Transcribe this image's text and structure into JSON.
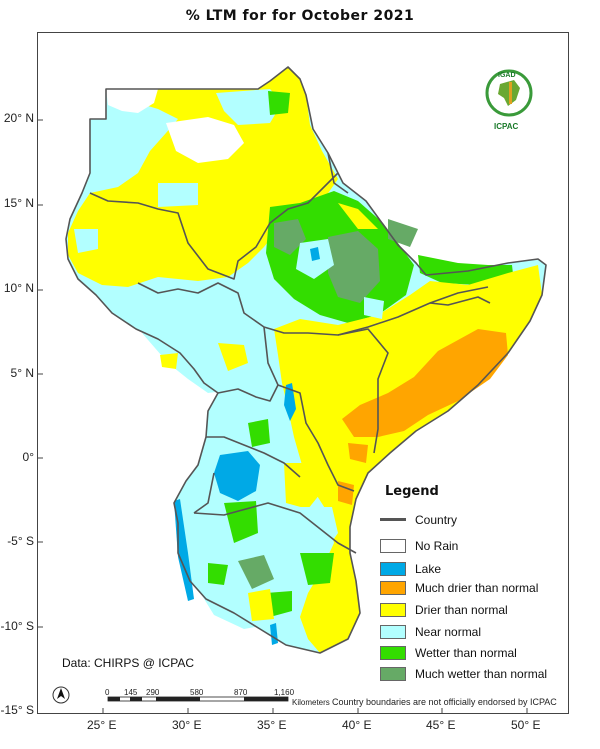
{
  "title": "% LTM for  for October 2021",
  "latitude_labels": [
    "20° N",
    "15° N",
    "10° N",
    "5° N",
    "0°",
    "-5° S",
    "-10° S",
    "-15° S"
  ],
  "longitude_labels": [
    "25° E",
    "30° E",
    "35° E",
    "40° E",
    "45° E",
    "50° E"
  ],
  "legend": {
    "title": "Legend",
    "country_label": "Country",
    "items": [
      {
        "label": "No Rain",
        "color": "#ffffff"
      },
      {
        "label": "Lake",
        "color": "#00a9e6"
      },
      {
        "label": "Much drier than normal",
        "color": "#ffa500"
      },
      {
        "label": "Drier than normal",
        "color": "#ffff00"
      },
      {
        "label": "Near normal",
        "color": "#b2ffff"
      },
      {
        "label": "Wetter than normal",
        "color": "#33dd00"
      },
      {
        "label": "Much wetter than normal",
        "color": "#66aa66"
      }
    ]
  },
  "credit": "Data: CHIRPS @ ICPAC",
  "disclaimer": "Country boundaries are not officially endorsed by ICPAC",
  "scale_bar": {
    "ticks": [
      "0",
      "145",
      "290",
      "580",
      "870",
      "1,160"
    ],
    "units": "Kilometers"
  },
  "logo": {
    "top_text": "IGAD",
    "bottom_text": "ICPAC"
  }
}
